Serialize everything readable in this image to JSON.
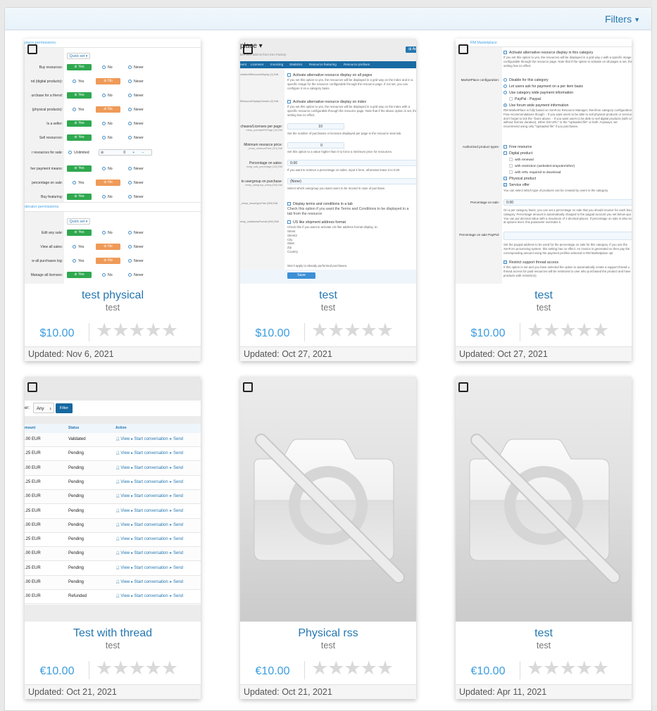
{
  "filters": {
    "label": "Filters",
    "icon": "caret-down-icon"
  },
  "colors": {
    "link": "#2577b1",
    "price": "#3a9de0",
    "yes": "#2fa84f",
    "no": "#ef9a58",
    "star_empty": "#d9d9d9"
  },
  "cards": [
    {
      "title": "test physical",
      "subtitle": "test",
      "price": "$10.00",
      "rating": 0,
      "max_rating": 5,
      "updated": "Updated: Nov 6, 2021",
      "thumb": "permissions-screenshot"
    },
    {
      "title": "test",
      "subtitle": "test",
      "price": "$10.00",
      "rating": 0,
      "max_rating": 5,
      "updated": "Updated: Oct 27, 2021",
      "thumb": "options-screenshot"
    },
    {
      "title": "test",
      "subtitle": "test",
      "price": "$10.00",
      "rating": 0,
      "max_rating": 5,
      "updated": "Updated: Oct 27, 2021",
      "thumb": "category-screenshot"
    },
    {
      "title": "Test with thread",
      "subtitle": "test",
      "price": "€10.00",
      "rating": 0,
      "max_rating": 5,
      "updated": "Updated: Oct 21, 2021",
      "thumb": "sales-table-screenshot"
    },
    {
      "title": "Physical rss",
      "subtitle": "test",
      "price": "€10.00",
      "rating": 0,
      "max_rating": 5,
      "updated": "Updated: Oct 21, 2021",
      "thumb": "no-image-placeholder"
    },
    {
      "title": "test",
      "subtitle": "test",
      "price": "€10.00",
      "rating": 0,
      "max_rating": 5,
      "updated": "Updated: Apr 11, 2021",
      "thumb": "no-image-placeholder"
    }
  ],
  "thumb1": {
    "section1": "place permissions",
    "section2": "derator permissions",
    "quick_set": "Quick set ▾",
    "yes": "Yes",
    "no": "No",
    "never": "Never",
    "unlimited": "Unlimited",
    "limit_value": "0",
    "rows1": [
      {
        "label": "Buy resources:",
        "value": "yes"
      },
      {
        "label": "nd (digital products):",
        "value": "no"
      },
      {
        "label": "urchase for a friend:",
        "value": "yes"
      },
      {
        "label": "(physical products):",
        "value": "no"
      },
      {
        "label": "Is a seller:",
        "value": "yes"
      },
      {
        "label": "Sell resources:",
        "value": "yes"
      },
      {
        "label": "r resources for sale:",
        "value": "unlimited"
      },
      {
        "label": "her payment means:",
        "value": "yes"
      },
      {
        "label": "percentage on sale:",
        "value": "no"
      },
      {
        "label": "Buy featuring:",
        "value": "yes"
      }
    ],
    "rows2": [
      {
        "label": "Edit any sale:",
        "value": "yes"
      },
      {
        "label": "View all sales:",
        "value": "no"
      },
      {
        "label": "w all purchases log:",
        "value": "no"
      },
      {
        "label": "Manage all licenses:",
        "value": "yes"
      }
    ]
  },
  "thumb2": {
    "title": "place ▾",
    "subtitle": "ketPlace add-on from Ken Factory",
    "add_button": "⊞ Ad",
    "tabs": [
      "nent",
      "Licenses",
      "Invoicing",
      "Statistics",
      "Resource featuring",
      "Resource prefixes"
    ],
    "opt1_key": "ctivateAltResourceDisplay (1) Edit",
    "opt1_label": "Activate alternative resource display on all pages",
    "opt1_desc": "If you set this option to yes, the resources will be displayed in a grid way on the index and in a specific image for the resource configurable through the resource page. If not set, you can configure it on a category basis.",
    "opt2_key": "tResourceDisplayOnIndex (2) Edit",
    "opt2_label": "Activate alternative resource display on index",
    "opt2_desc": "If you set this option to yes, the resources will be displayed in a grid way on the index with a specific resource configurable through the resource page. Note that if the above option is set, this setting has no effect.",
    "opt3_label": "chases/Licenses per page:",
    "opt3_key": "rmmp_purchasePerPage (10) Edit",
    "opt3_value": "10",
    "opt3_desc": "Set the number of purchases or licenses displayed per page in the resource view tab.",
    "opt4_label": "Minimum resource price:",
    "opt4_key": "_rmmp_minimumPrice (101) Edit",
    "opt4_value": "0",
    "opt4_desc": "Set this option to a value higher than 0 to force a minimum price for resources.",
    "opt5_label": "Percentage on sales:",
    "opt5_key": "rmmp_sale_percentage (102) Edit",
    "opt5_value": "0.00",
    "opt5_desc": "If you want to retrieve a percentage on sales, input it here, otherwise leave it to 0.00.",
    "opt6_label": "to usergroup on purchase:",
    "opt6_key": "rmmp_usergroup_onbuy (200) Edit",
    "opt6_value": "(None)",
    "opt6_desc": "Select which usergroup you want users to be moved in case of purchase.",
    "opt7_key": "_rmmp_showCgvInTab (300) Edit",
    "opt7_label": "Display terms and conditions in a tab",
    "opt7_desc": "Check this option if you want the Terms and Conditions to be displayed in a tab from the resource",
    "opt8_key": "mmp_usAddressFormat (400) Edit",
    "opt8_label": "US like shipment address format",
    "opt8_desc": "Check this if you want to activate US like address format display, ie.:",
    "opt8_lines": [
      "Street",
      "Street2",
      "City",
      "State",
      "Zip",
      "Country"
    ],
    "opt8_note": "Won't apply to already performed purchases.",
    "save": "Save"
  },
  "thumb3": {
    "header": "RM Marketplace",
    "alt_label": "Activate alternative resource display in this category",
    "alt_desc": "If you set this option to yes, the resources will be displayed in a grid way o with a specific image configurable through the resource page. Note that if the option to activate on all pages is set, this setting has no effect.",
    "config_label": "MarketPlace configuration:",
    "config_options": [
      "Disable for this category",
      "Let users ask for payment on a per item basis",
      "Use category wide payment information",
      "Use forum wide payment information"
    ],
    "paypal": "PayPal - Paypal",
    "config_desc": "RM MarketPlace is fully based on XenForo Resource Manager, therefore category configuration Few recommendations though: - If you want users to be able to sell physical products or service, don't forget to tick the \"Does above. - If you want users to be able to sell digital products (with or without license duration), either tick URL\" or the \"Uploaded file\" or both. Anyways, we recommend using only \"Uploaded file\" if you purchases.",
    "types_label": "Authorized product types:",
    "types": [
      "Free resource",
      "Digital product",
      "with renewal",
      "with restriction (website/computer/other)",
      "with URL required to download",
      "Physical product",
      "Service offer"
    ],
    "types_desc": "You can select which type of products can be created by users in the category.",
    "pct_label": "Percentage on sale:",
    "pct_value": "0.00",
    "pct_desc": "On a per category basis, you can set a percentage on sale that you should receive for each bou category. Percentage amount is automatically charged to the paypal account you set below upo You can put decimal value with a maximum of 2 decimal places. If percentage on sale is also set at options level, this parameter overrides it.",
    "paypal_label": "Percentage on sale PayPal:",
    "paypal_desc": "Set the paypal address to be used for the percentage on sale for this category. If you use the XenForo processing system, this setting has no effect. An invoice is generated ov then pay the corresponding amount using the payment profiles selected in RM Marketplace opt",
    "restrict_label": "Restrict support thread access",
    "restrict_desc": "If this option is set and you have selected the option to automatically create a support thread u thread access for paid resources will be restricted to user who purchased the product and have products with restriction)."
  },
  "thumb4": {
    "filter_label": "er:",
    "filter_value": "Any",
    "filter_button": "Filter",
    "columns": [
      "mount",
      "Status",
      "Action"
    ],
    "actions": [
      "View",
      "Start conversation",
      "Send"
    ],
    "rows": [
      {
        "amount": ".00 EUR",
        "status": "Validated"
      },
      {
        "amount": ".25 EUR",
        "status": "Pending"
      },
      {
        "amount": ".00 EUR",
        "status": "Pending"
      },
      {
        "amount": ".25 EUR",
        "status": "Pending"
      },
      {
        "amount": ".00 EUR",
        "status": "Pending"
      },
      {
        "amount": ".25 EUR",
        "status": "Pending"
      },
      {
        "amount": ".00 EUR",
        "status": "Pending"
      },
      {
        "amount": ".25 EUR",
        "status": "Pending"
      },
      {
        "amount": ".00 EUR",
        "status": "Pending"
      },
      {
        "amount": ".25 EUR",
        "status": "Pending"
      },
      {
        "amount": ".00 EUR",
        "status": "Pending"
      },
      {
        "amount": ".00 EUR",
        "status": "Refunded"
      }
    ]
  }
}
